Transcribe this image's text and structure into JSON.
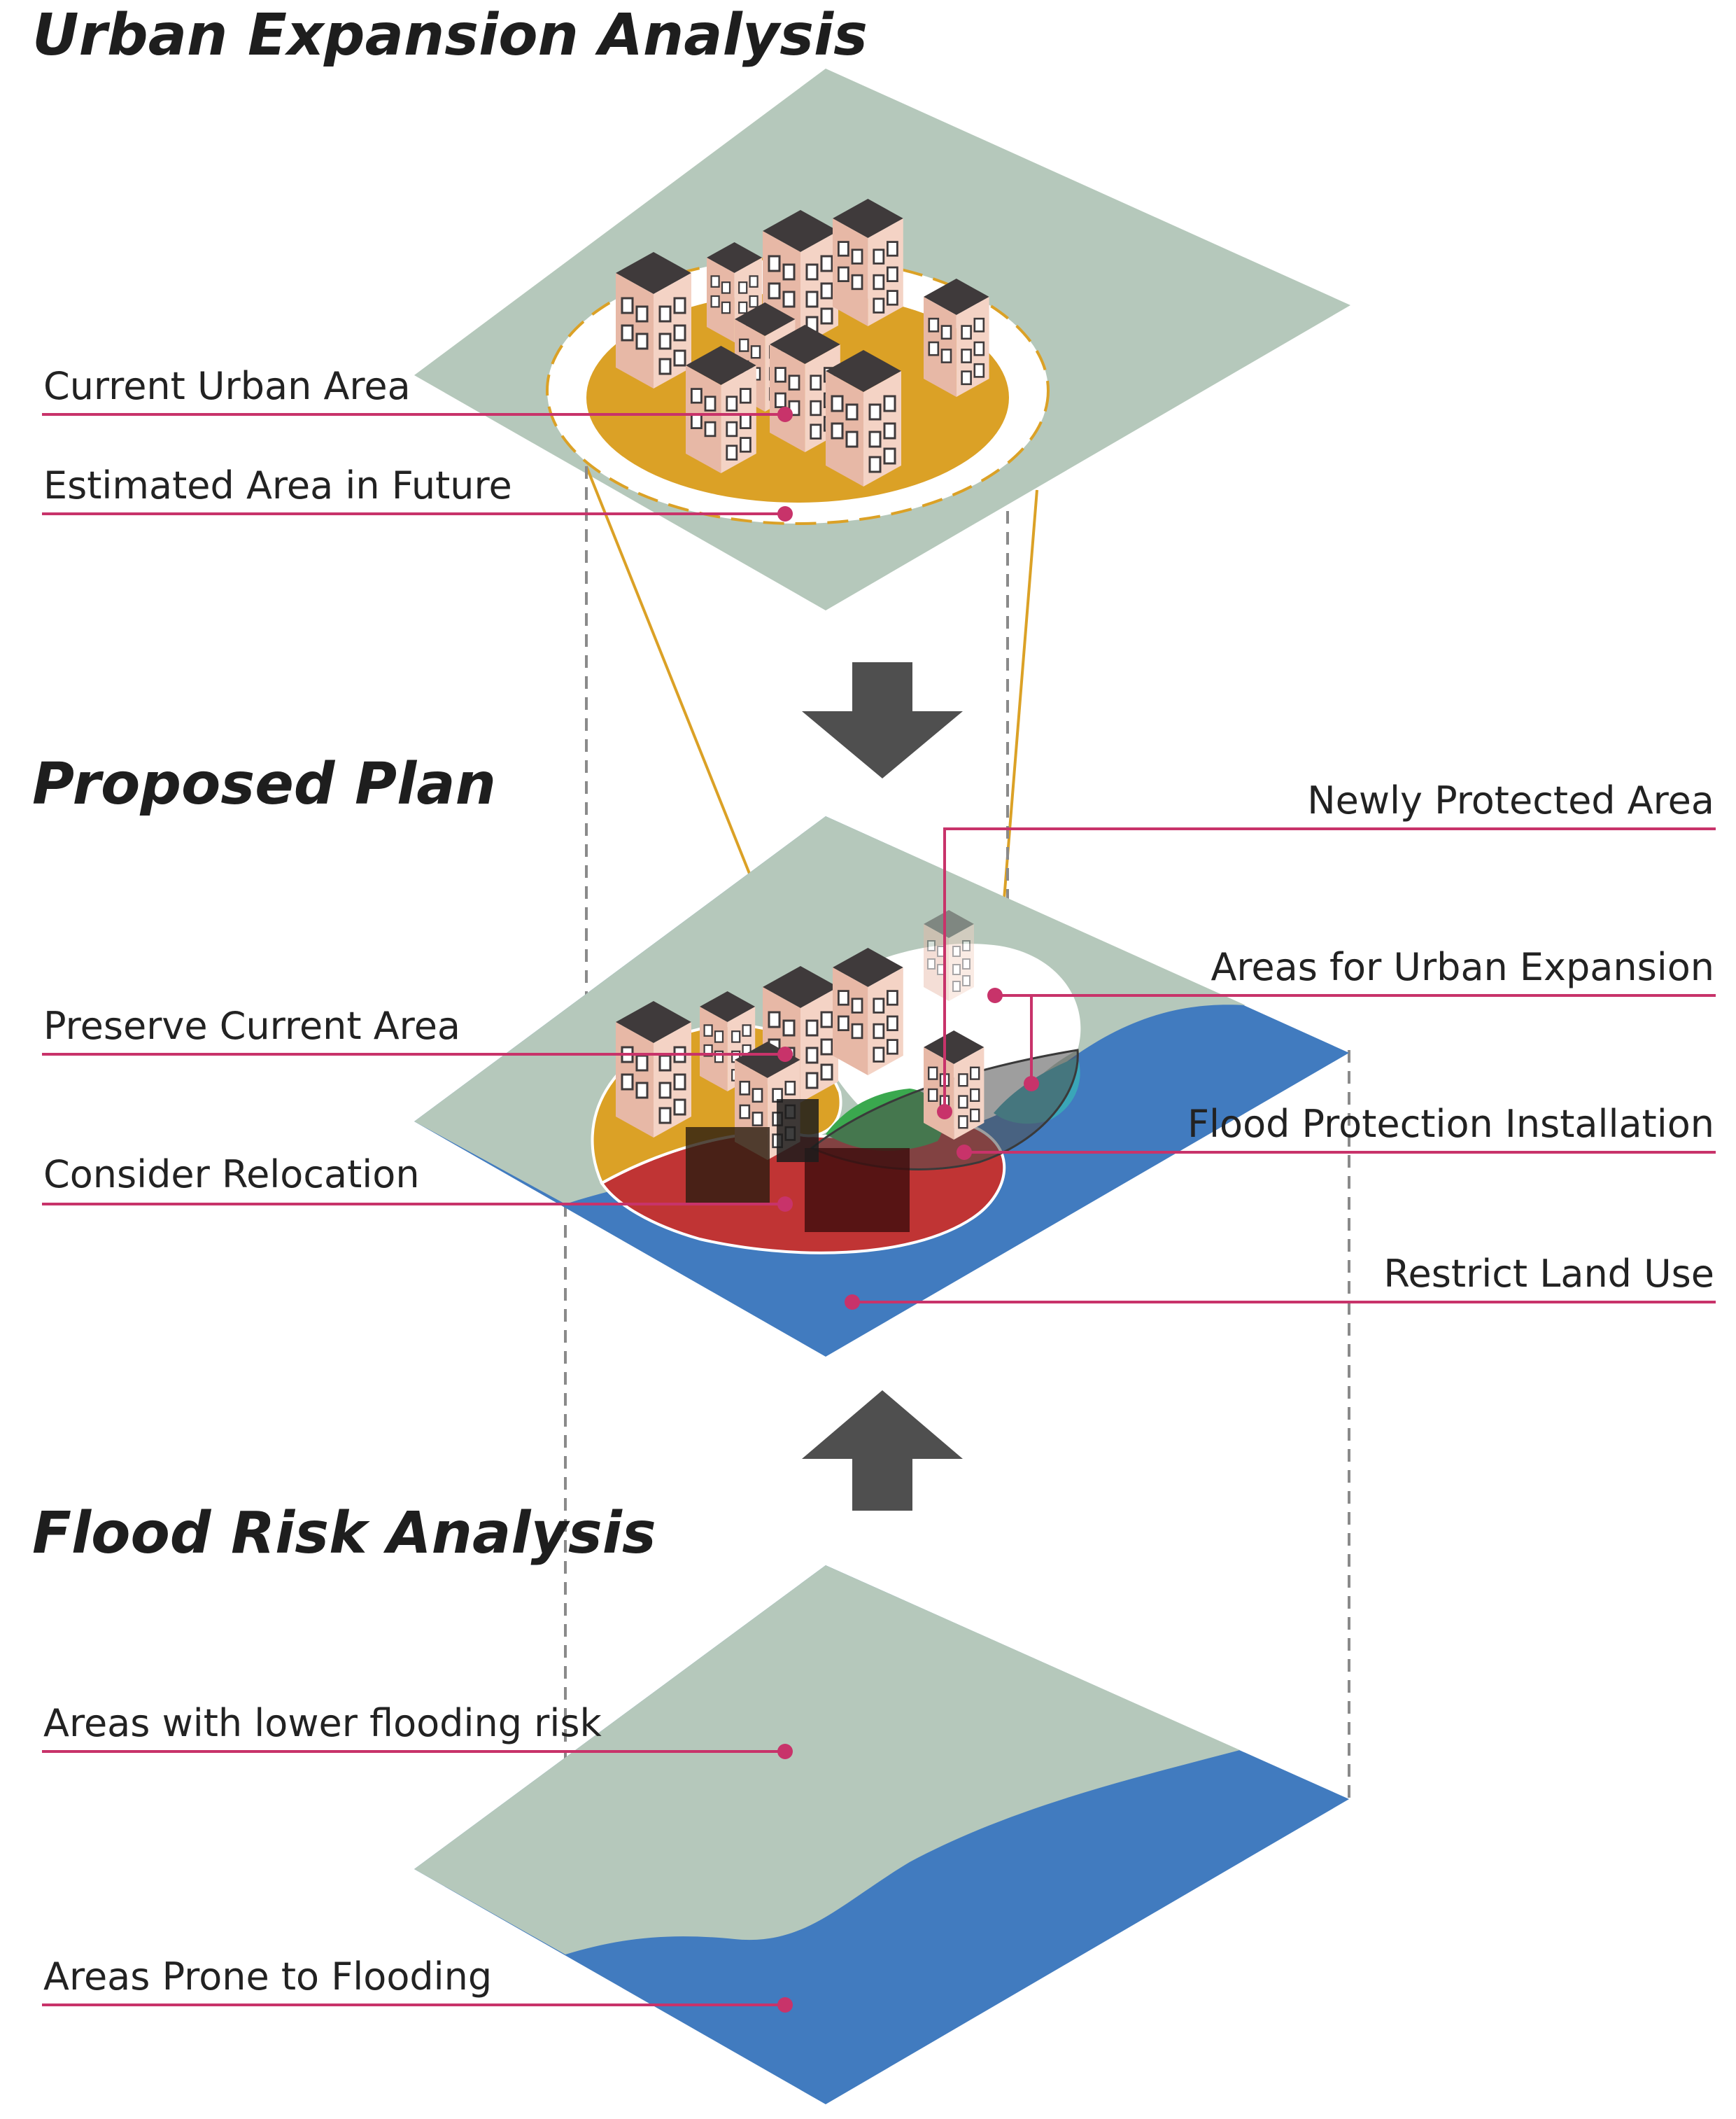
{
  "titles": {
    "urban": "Urban Expansion Analysis",
    "plan": "Proposed Plan",
    "flood": "Flood Risk Analysis"
  },
  "labels": {
    "current_urban_area": "Current Urban Area",
    "estimated_future": "Estimated Area in Future",
    "newly_protected": "Newly Protected Area",
    "urban_expansion_areas": "Areas for Urban Expansion",
    "preserve_current": "Preserve Current Area",
    "flood_protection": "Flood Protection Installation",
    "consider_relocation": "Consider Relocation",
    "restrict_land_use": "Restrict Land Use",
    "lower_risk": "Areas with lower flooding risk",
    "prone_flooding": "Areas Prone to Flooding"
  },
  "colors": {
    "land": "#b5c8bb",
    "water": "#417bbf",
    "urban": "#dba126",
    "relocation": "#c03434",
    "protected": "#3aa84e",
    "expansion": "#3aa6b8",
    "leader": "#c8336a",
    "arrow": "#4f4f4f",
    "building_wall": "#ecc1b0",
    "building_dark": "#3f3a3b"
  },
  "icons": {
    "down_arrow": "down-arrow-icon",
    "up_arrow": "up-arrow-icon",
    "buildings": "building-icon"
  }
}
